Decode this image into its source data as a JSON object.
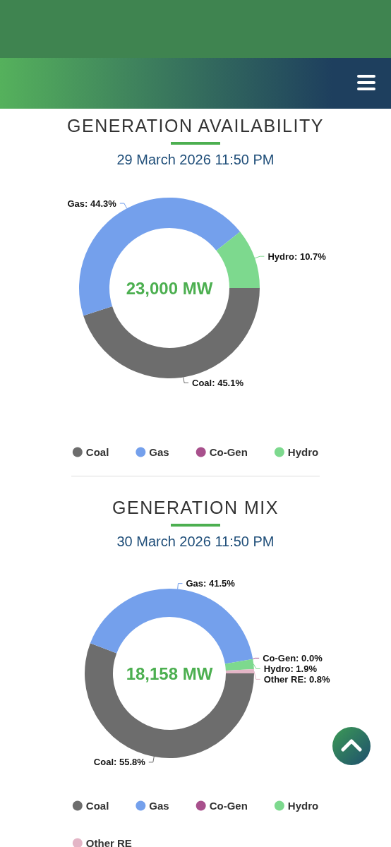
{
  "chart_data": [
    {
      "type": "donut",
      "title": "GENERATION AVAILABILITY",
      "subtitle": "29 March 2026 11:50 PM",
      "categories": [
        "Coal",
        "Gas",
        "Co-Gen",
        "Hydro"
      ],
      "values": [
        45.1,
        44.3,
        0,
        10.7
      ],
      "colors": [
        "#6d6d6d",
        "#74a0ec",
        "#a8508c",
        "#7dd98e"
      ],
      "value_labels": [
        "Coal: 45.1%",
        "Gas: 44.3%",
        null,
        "Hydro: 10.7%"
      ],
      "annotations": [
        "23,000 MW"
      ],
      "legend": "bottom"
    },
    {
      "type": "donut",
      "title": "GENERATION MIX",
      "subtitle": "30 March 2026 11:50 PM",
      "categories": [
        "Coal",
        "Gas",
        "Co-Gen",
        "Hydro",
        "Other RE"
      ],
      "values": [
        55.8,
        41.5,
        0.0,
        1.9,
        0.8
      ],
      "colors": [
        "#6d6d6d",
        "#74a0ec",
        "#a8508c",
        "#7dd98e",
        "#e3b5c6"
      ],
      "value_labels": [
        "Coal: 55.8%",
        "Gas: 41.5%",
        "Co-Gen: 0.0%",
        "Hydro: 1.9%",
        "Other RE: 0.8%"
      ],
      "annotations": [
        "18,158 MW"
      ],
      "legend": "bottom"
    }
  ]
}
